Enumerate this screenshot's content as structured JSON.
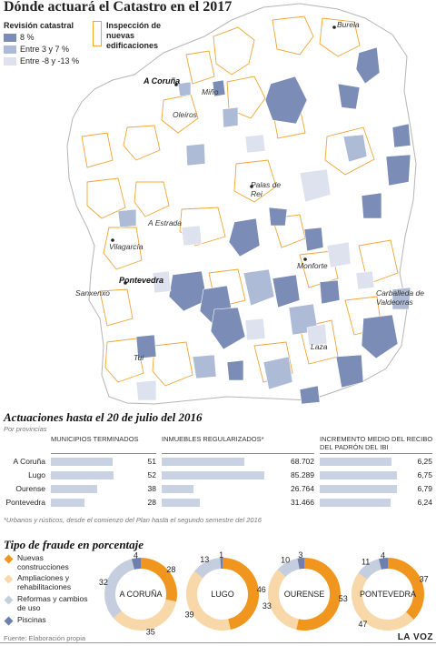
{
  "title": "Dónde actuará el Catastro en el 2017",
  "legend": {
    "heading": "Revisión catastral",
    "items": [
      {
        "label": "8 %",
        "color": "#7b8db6"
      },
      {
        "label": "Entre 3 y 7 %",
        "color": "#aebbd6"
      },
      {
        "label": "Entre -8 y -13 %",
        "color": "#dde2ee"
      }
    ],
    "inspection_label": "Inspección de nuevas edificaciones",
    "inspection_color": "#f0a533"
  },
  "cities": {
    "burela": "Burela",
    "acoruna": "A Coruña",
    "mino": "Miño",
    "oleiros": "Oleiros",
    "palas": "Palas de Rei",
    "aestrada": "A Estrada",
    "vilagarcia": "Vilagarcía",
    "pontevedra": "Pontevedra",
    "sanxenxo": "Sanxenxo",
    "monforte": "Monforte",
    "carballeda": "Carballeda de Valdeorras",
    "laza": "Laza",
    "tui": "Tui"
  },
  "section2": {
    "title": "Actuaciones hasta el 20 de julio del 2016",
    "subtitle": "Por provincias",
    "footnote": "*Urbanos y rústicos, desde el comienzo del Plan hasta el segundo semestre del 2016"
  },
  "chart_data": [
    {
      "type": "bar",
      "title": "Municipios terminados",
      "categories": [
        "A Coruña",
        "Lugo",
        "Ourense",
        "Pontevedra"
      ],
      "values": [
        51,
        52,
        38,
        28
      ],
      "labels": [
        "51",
        "52",
        "38",
        "28"
      ]
    },
    {
      "type": "bar",
      "title": "Inmuebles regularizados*",
      "categories": [
        "A Coruña",
        "Lugo",
        "Ourense",
        "Pontevedra"
      ],
      "values": [
        68702,
        85289,
        26764,
        31466
      ],
      "labels": [
        "68.702",
        "85.289",
        "26.764",
        "31.466"
      ]
    },
    {
      "type": "bar",
      "title": "Incremento medio del recibo del padrón del IBI",
      "categories": [
        "A Coruña",
        "Lugo",
        "Ourense",
        "Pontevedra"
      ],
      "values": [
        6.25,
        6.75,
        6.79,
        6.24
      ],
      "labels": [
        "6,25",
        "6,75",
        "6,79",
        "6,24"
      ]
    },
    {
      "type": "pie",
      "title": "Tipo de fraude en porcentaje",
      "categories": [
        "Nuevas construcciones",
        "Ampliaciones y rehabilitaciones",
        "Reformas y cambios de uso",
        "Piscinas"
      ],
      "colors": [
        "#f0961e",
        "#f8d7a8",
        "#c5cedf",
        "#6d80ab"
      ],
      "series": [
        {
          "name": "A CORUÑA",
          "values": [
            28,
            35,
            32,
            4
          ]
        },
        {
          "name": "LUGO",
          "values": [
            46,
            39,
            13,
            1
          ]
        },
        {
          "name": "OURENSE",
          "values": [
            53,
            33,
            10,
            3
          ]
        },
        {
          "name": "PONTEVEDRA",
          "values": [
            37,
            47,
            11,
            4
          ]
        }
      ]
    }
  ],
  "source": "Fuente: Elaboración propia",
  "brand": "LA VOZ"
}
